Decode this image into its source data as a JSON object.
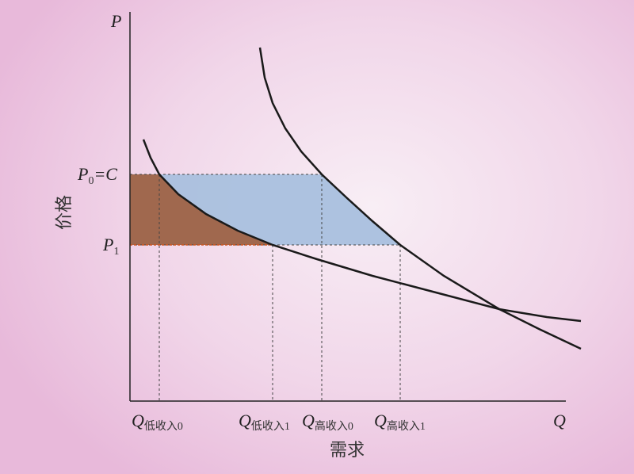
{
  "axes": {
    "y_symbol": "P",
    "x_symbol": "Q",
    "y_label": "价格",
    "x_label": "需求"
  },
  "price_labels": {
    "p0": {
      "symbol": "P",
      "sub": "0",
      "suffix": "=C"
    },
    "p1": {
      "symbol": "P",
      "sub": "1"
    }
  },
  "quantity_labels": [
    {
      "symbol": "Q",
      "sub": "低收入0"
    },
    {
      "symbol": "Q",
      "sub": "低收入1"
    },
    {
      "symbol": "Q",
      "sub": "高收入0"
    },
    {
      "symbol": "Q",
      "sub": "高收入1"
    }
  ],
  "colors": {
    "low_income_region": "#a0684e",
    "high_income_region": "#a9c0de",
    "curve": "#1a1a1a",
    "p1_line_accent": "#d0541e"
  }
}
